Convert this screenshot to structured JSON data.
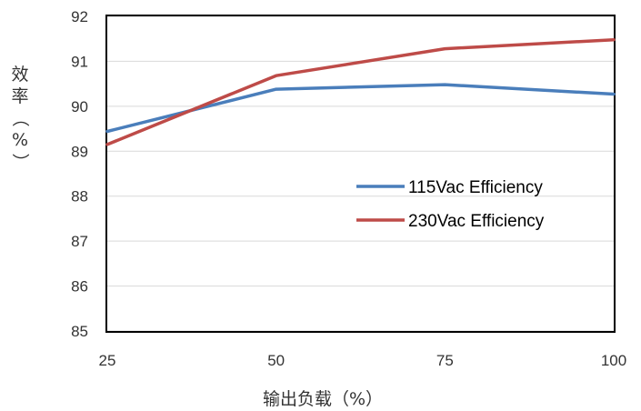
{
  "chart_data": {
    "type": "line",
    "title": "",
    "xlabel": "输出负载（%）",
    "ylabel": "效率（%）",
    "x": [
      25,
      50,
      75,
      100
    ],
    "xlim": [
      25,
      100
    ],
    "ylim": [
      85,
      92
    ],
    "xticks": [
      "25",
      "50",
      "75",
      "100"
    ],
    "yticks": [
      "85",
      "86",
      "87",
      "88",
      "89",
      "90",
      "91",
      "92"
    ],
    "grid": "horizontal",
    "legend_position": "right",
    "series": [
      {
        "name": "115Vac Efficiency",
        "color": "#4a7ebb",
        "values": [
          89.44,
          90.38,
          90.48,
          90.27
        ]
      },
      {
        "name": "230Vac Efficiency",
        "color": "#be4b48",
        "values": [
          89.15,
          90.68,
          91.28,
          91.48
        ]
      }
    ]
  }
}
